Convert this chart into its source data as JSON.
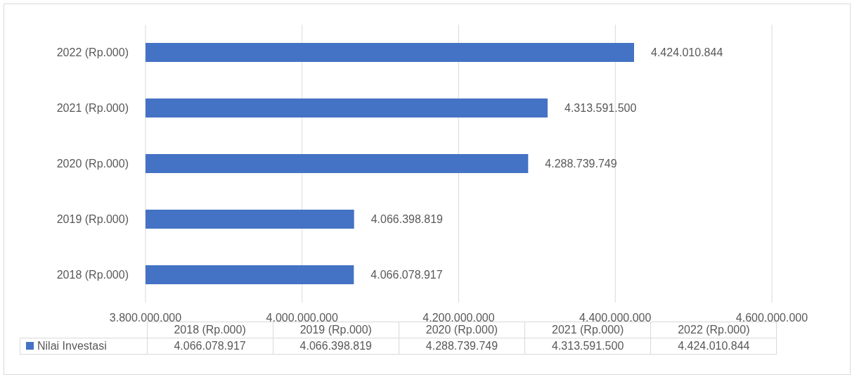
{
  "chart_data": {
    "type": "bar",
    "orientation": "horizontal",
    "categories": [
      "2022 (Rp.000)",
      "2021 (Rp.000)",
      "2020 (Rp.000)",
      "2019 (Rp.000)",
      "2018 (Rp.000)"
    ],
    "series": [
      {
        "name": "Nilai Investasi",
        "color": "#4472c4",
        "values": [
          4424010844,
          4313591500,
          4288739749,
          4066398819,
          4066078917
        ],
        "value_labels": [
          "4.424.010.844",
          "4.313.591.500",
          "4.288.739.749",
          "4.066.398.819",
          "4.066.078.917"
        ]
      }
    ],
    "xlim": [
      3800000000,
      4600000000
    ],
    "xticks": [
      {
        "value": 3800000000,
        "label": "3.800.000.000"
      },
      {
        "value": 4000000000,
        "label": "4.000.000.000"
      },
      {
        "value": 4200000000,
        "label": "4.200.000.000"
      },
      {
        "value": 4400000000,
        "label": "4.400.000.000"
      },
      {
        "value": 4600000000,
        "label": "4.600.000.000"
      }
    ],
    "grid": "x",
    "legend": "bottom"
  }
}
